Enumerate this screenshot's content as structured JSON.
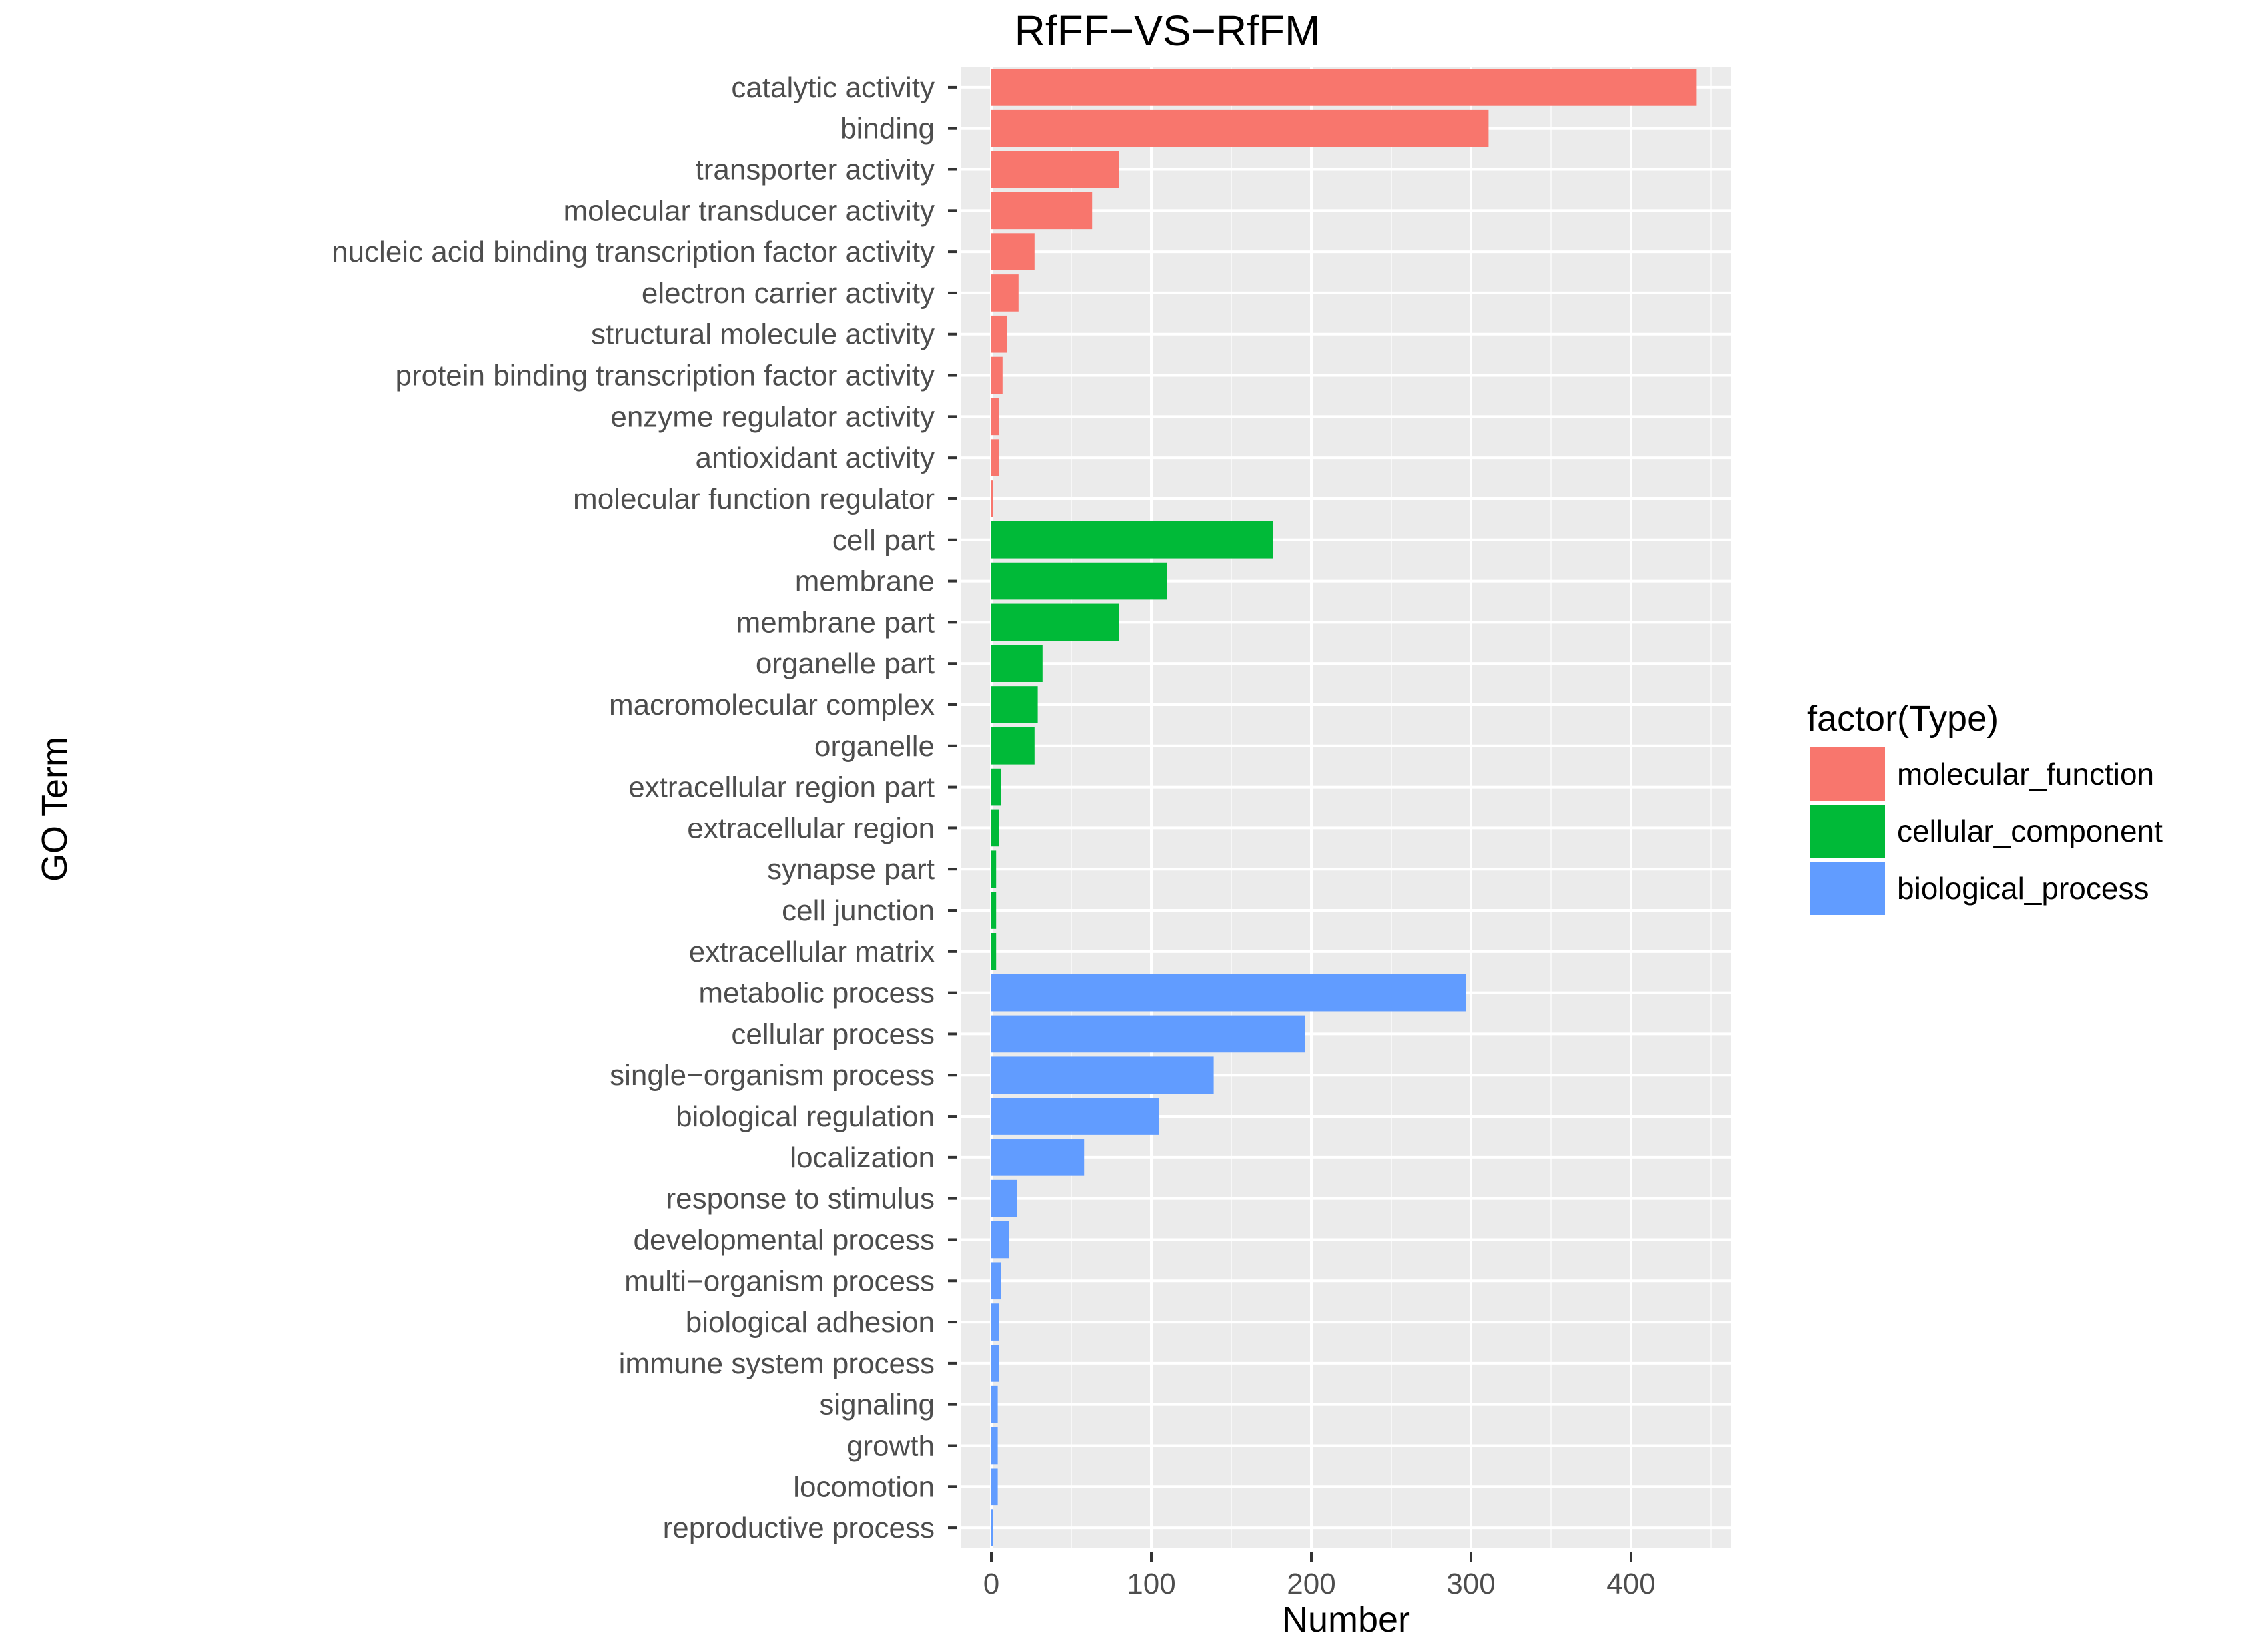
{
  "chart_data": {
    "type": "bar",
    "orientation": "horizontal",
    "title": "RfFF−VS−RfFM",
    "xlabel": "Number",
    "ylabel": "GO Term",
    "xlim": [
      -20,
      460
    ],
    "xticks": [
      0,
      100,
      200,
      300,
      400
    ],
    "grid": true,
    "legend": {
      "title": "factor(Type)",
      "position": "right",
      "entries": [
        {
          "name": "molecular_function",
          "color": "#F8766D"
        },
        {
          "name": "cellular_component",
          "color": "#00BA38"
        },
        {
          "name": "biological_process",
          "color": "#619CFF"
        }
      ]
    },
    "categories": [
      "catalytic activity",
      "binding",
      "transporter activity",
      "molecular transducer activity",
      "nucleic acid binding transcription factor activity",
      "electron carrier activity",
      "structural molecule activity",
      "protein binding transcription factor activity",
      "enzyme regulator activity",
      "antioxidant activity",
      "molecular function regulator",
      "cell part",
      "membrane",
      "membrane part",
      "organelle part",
      "macromolecular complex",
      "organelle",
      "extracellular region part",
      "extracellular region",
      "synapse part",
      "cell junction",
      "extracellular matrix",
      "metabolic process",
      "cellular process",
      "single−organism process",
      "biological regulation",
      "localization",
      "response to stimulus",
      "developmental process",
      "multi−organism process",
      "biological adhesion",
      "immune system process",
      "signaling",
      "growth",
      "locomotion",
      "reproductive process"
    ],
    "values": [
      441,
      311,
      80,
      63,
      27,
      17,
      10,
      7,
      5,
      5,
      1,
      176,
      110,
      80,
      32,
      29,
      27,
      6,
      5,
      3,
      3,
      3,
      297,
      196,
      139,
      105,
      58,
      16,
      11,
      6,
      5,
      5,
      4,
      4,
      4,
      1
    ],
    "types": [
      "molecular_function",
      "molecular_function",
      "molecular_function",
      "molecular_function",
      "molecular_function",
      "molecular_function",
      "molecular_function",
      "molecular_function",
      "molecular_function",
      "molecular_function",
      "molecular_function",
      "cellular_component",
      "cellular_component",
      "cellular_component",
      "cellular_component",
      "cellular_component",
      "cellular_component",
      "cellular_component",
      "cellular_component",
      "cellular_component",
      "cellular_component",
      "cellular_component",
      "biological_process",
      "biological_process",
      "biological_process",
      "biological_process",
      "biological_process",
      "biological_process",
      "biological_process",
      "biological_process",
      "biological_process",
      "biological_process",
      "biological_process",
      "biological_process",
      "biological_process",
      "biological_process"
    ]
  },
  "colors": {
    "panel_bg": "#EBEBEB",
    "grid_major": "#FFFFFF",
    "tick": "#333333"
  }
}
